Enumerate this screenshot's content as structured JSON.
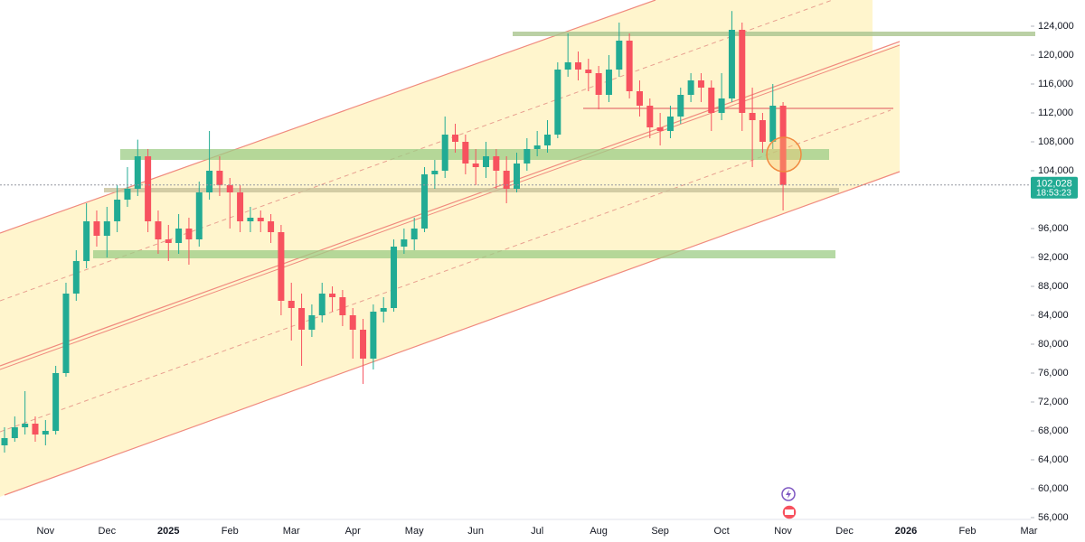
{
  "chart_data": {
    "type": "candlestick",
    "up_color": "#22ab94",
    "down_color": "#f7525f",
    "ylim": [
      55750,
      127625
    ],
    "yticks": [
      {
        "value": 56000,
        "label": "56,000"
      },
      {
        "value": 60000,
        "label": "60,000"
      },
      {
        "value": 64000,
        "label": "64,000"
      },
      {
        "value": 68000,
        "label": "68,000"
      },
      {
        "value": 72000,
        "label": "72,000"
      },
      {
        "value": 76000,
        "label": "76,000"
      },
      {
        "value": 80000,
        "label": "80,000"
      },
      {
        "value": 84000,
        "label": "84,000"
      },
      {
        "value": 88000,
        "label": "88,000"
      },
      {
        "value": 92000,
        "label": "92,000"
      },
      {
        "value": 96000,
        "label": "96,000"
      },
      {
        "value": 104000,
        "label": "104,000"
      },
      {
        "value": 108000,
        "label": "108,000"
      },
      {
        "value": 112000,
        "label": "112,000"
      },
      {
        "value": 116000,
        "label": "116,000"
      },
      {
        "value": 120000,
        "label": "120,000"
      },
      {
        "value": 124000,
        "label": "124,000"
      }
    ],
    "last_price": {
      "value": 102028,
      "label": "102,028"
    },
    "countdown": "18:53:23",
    "categories": [
      null,
      null,
      null,
      null,
      "Nov",
      null,
      null,
      null,
      null,
      null,
      "Dec",
      null,
      null,
      null,
      null,
      null,
      "2025",
      null,
      null,
      null,
      null,
      null,
      "Feb",
      null,
      null,
      null,
      null,
      null,
      "Mar",
      null,
      null,
      null,
      null,
      null,
      "Apr",
      null,
      null,
      null,
      null,
      null,
      "May",
      null,
      null,
      null,
      null,
      null,
      "Jun",
      null,
      null,
      null,
      null,
      null,
      "Jul",
      null,
      null,
      null,
      null,
      null,
      "Aug",
      null,
      null,
      null,
      null,
      null,
      "Sep",
      null,
      null,
      null,
      null,
      null,
      "Oct",
      null,
      null,
      null,
      null,
      null,
      "Nov",
      null,
      null,
      null,
      null,
      null,
      "Dec",
      null,
      null,
      null,
      null,
      null,
      "2026",
      null,
      null,
      null,
      null,
      null,
      "Feb",
      null,
      null,
      null,
      null,
      null,
      "Mar"
    ],
    "open": [
      66000,
      67000,
      68500,
      69000,
      67500,
      68000,
      76000,
      87000,
      91500,
      97000,
      95000,
      97000,
      100000,
      101500,
      106000,
      97000,
      94500,
      94000,
      96000,
      94500,
      101000,
      104000,
      102000,
      101000,
      97000,
      97500,
      97000,
      95500,
      86000,
      85000,
      82000,
      84000,
      87000,
      86500,
      84000,
      82000,
      78000,
      84500,
      85000,
      93500,
      94500,
      96000,
      103500,
      104000,
      109000,
      108000,
      105000,
      104500,
      106000,
      104000,
      101500,
      105000,
      107000,
      107500,
      109000,
      118000,
      119000,
      118000,
      117500,
      114500,
      118000,
      122000,
      115000,
      113000,
      110000,
      109500,
      111500,
      114500,
      116500,
      115500,
      112000,
      114000,
      123500,
      112000,
      111000,
      108000,
      113000,
      null,
      null,
      null,
      null,
      null,
      null,
      null,
      null,
      null,
      null,
      null,
      null,
      null,
      null,
      null,
      null,
      null,
      null,
      null,
      null,
      null,
      null,
      null,
      null
    ],
    "high": [
      68500,
      70000,
      73500,
      70000,
      69500,
      77000,
      88500,
      93000,
      99500,
      98500,
      99000,
      102000,
      104500,
      108300,
      107000,
      98500,
      96500,
      98000,
      97500,
      102500,
      109500,
      106000,
      103000,
      102000,
      99000,
      98500,
      98000,
      96500,
      88500,
      87000,
      85500,
      88500,
      88000,
      87500,
      85000,
      83500,
      85500,
      86500,
      94500,
      96000,
      97500,
      104500,
      105500,
      111500,
      110500,
      109000,
      107000,
      108000,
      107000,
      106000,
      106500,
      108500,
      109500,
      111000,
      119000,
      123000,
      120500,
      119500,
      118500,
      120000,
      124500,
      123000,
      116500,
      114000,
      112000,
      113000,
      115500,
      117500,
      117500,
      116500,
      117500,
      126100,
      124500,
      115500,
      112000,
      116000,
      113500,
      null,
      null,
      null,
      null,
      null,
      null,
      null,
      null,
      null,
      null,
      null,
      null,
      null,
      null,
      null,
      null,
      null,
      null,
      null,
      null,
      null,
      null,
      null,
      null
    ],
    "low": [
      65000,
      66500,
      67500,
      66500,
      66000,
      67500,
      75500,
      86000,
      90500,
      93500,
      92000,
      95500,
      99000,
      100500,
      95500,
      92500,
      91500,
      92500,
      91000,
      93500,
      100000,
      100500,
      96000,
      95500,
      95500,
      95500,
      94000,
      84000,
      80500,
      77000,
      81000,
      83000,
      84500,
      82500,
      78000,
      74500,
      76500,
      83000,
      84500,
      92500,
      93000,
      95500,
      101500,
      103000,
      106500,
      103500,
      102000,
      103000,
      101500,
      99500,
      101000,
      104000,
      106000,
      106500,
      108500,
      117000,
      116500,
      115000,
      112500,
      113500,
      117000,
      114000,
      111500,
      108500,
      107500,
      108500,
      110500,
      113500,
      113500,
      109500,
      111000,
      113500,
      109500,
      104500,
      106500,
      107000,
      98500,
      null,
      null,
      null,
      null,
      null,
      null,
      null,
      null,
      null,
      null,
      null,
      null,
      null,
      null,
      null,
      null,
      null,
      null,
      null,
      null,
      null,
      null,
      null,
      null
    ],
    "close": [
      67000,
      68500,
      69000,
      67500,
      68000,
      76000,
      87000,
      91500,
      97000,
      95000,
      97000,
      100000,
      101500,
      106000,
      97000,
      94500,
      94000,
      96000,
      94500,
      101000,
      104000,
      102000,
      101000,
      97000,
      97500,
      97000,
      95500,
      86000,
      85000,
      82000,
      84000,
      87000,
      86500,
      84000,
      82000,
      78000,
      84500,
      85000,
      93500,
      94500,
      96000,
      103500,
      104000,
      109000,
      108000,
      105000,
      104500,
      106000,
      104000,
      101500,
      105000,
      107000,
      107500,
      109000,
      118000,
      119000,
      118000,
      117500,
      114500,
      118000,
      122000,
      115000,
      113000,
      110000,
      109500,
      111500,
      114500,
      116500,
      115500,
      112000,
      114000,
      123500,
      112000,
      111000,
      108000,
      113000,
      102028,
      null,
      null,
      null,
      null,
      null,
      null,
      null,
      null,
      null,
      null,
      null,
      null,
      null,
      null,
      null,
      null,
      null,
      null,
      null,
      null,
      null,
      null,
      null,
      null
    ]
  }
}
